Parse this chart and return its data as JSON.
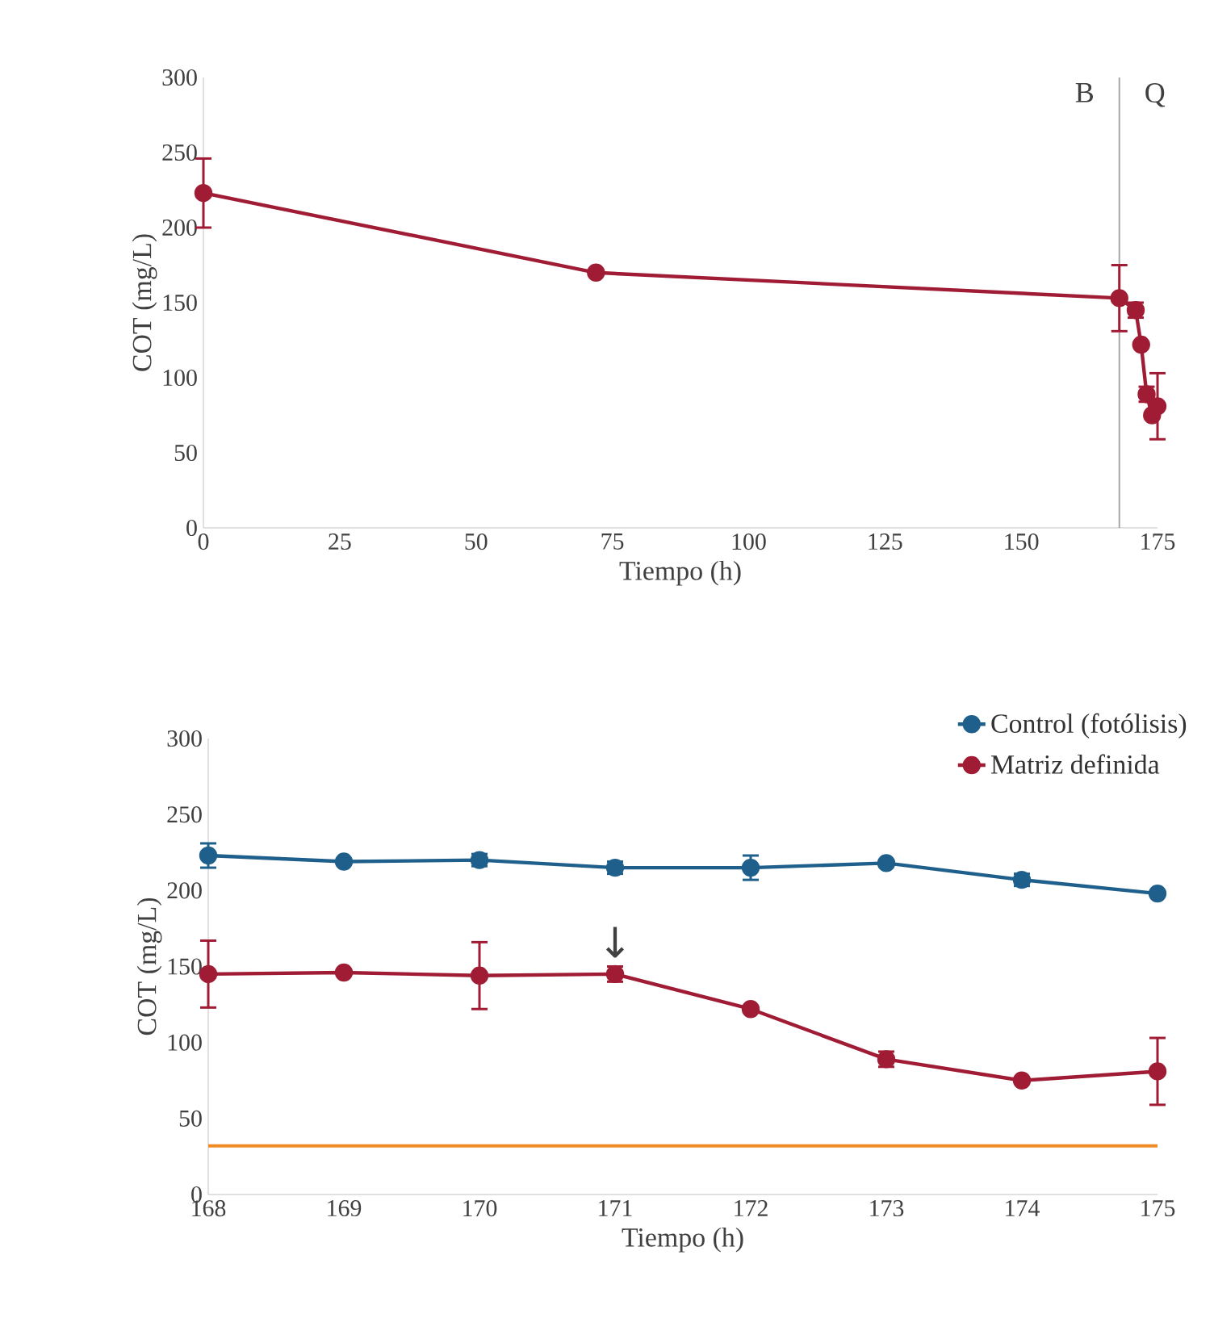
{
  "chart_data": [
    {
      "type": "line",
      "xlabel": "Tiempo (h)",
      "ylabel": "COT (mg/L)",
      "marker": "circle",
      "x": [
        0,
        72,
        168,
        169,
        170,
        171,
        172,
        173,
        174,
        175
      ],
      "series": [
        {
          "color": "#a01c34",
          "values": [
            223,
            170,
            153,
            null,
            null,
            145,
            122,
            89,
            75,
            81
          ],
          "errors": [
            23,
            null,
            22,
            null,
            null,
            5,
            null,
            5,
            null,
            22
          ]
        }
      ],
      "xlim": [
        0,
        175
      ],
      "ylim": [
        0,
        300
      ],
      "xticks": [
        0,
        25,
        50,
        75,
        100,
        125,
        150,
        175
      ],
      "yticks": [
        0,
        50,
        100,
        150,
        200,
        250,
        300
      ],
      "ref_lines": [
        {
          "axis": "x",
          "value": 168,
          "color": "#a6a6a6"
        }
      ],
      "annotations": [
        "B",
        "Q"
      ]
    },
    {
      "type": "line",
      "xlabel": "Tiempo (h)",
      "ylabel": "COT (mg/L)",
      "marker": "circle",
      "legend": "top right",
      "x": [
        168,
        169,
        170,
        171,
        172,
        173,
        174,
        175
      ],
      "series": [
        {
          "name": "Control (fotólisis)",
          "color": "#1f5f8b",
          "values": [
            223,
            219,
            220,
            215,
            215,
            218,
            207,
            198
          ],
          "errors": [
            8,
            null,
            4,
            4,
            8,
            null,
            4,
            null
          ]
        },
        {
          "name": "Matriz definida",
          "color": "#a01c34",
          "values": [
            145,
            146,
            144,
            145,
            122,
            89,
            75,
            81
          ],
          "errors": [
            22,
            null,
            22,
            5,
            null,
            5,
            null,
            22
          ]
        }
      ],
      "xlim": [
        168,
        175
      ],
      "ylim": [
        0,
        300
      ],
      "xticks": [
        168,
        169,
        170,
        171,
        172,
        173,
        174,
        175
      ],
      "yticks": [
        0,
        50,
        100,
        150,
        200,
        250,
        300
      ],
      "ref_lines": [
        {
          "axis": "y",
          "value": 32,
          "color": "#f08a24"
        }
      ],
      "annotations": [
        {
          "text": "↓",
          "x": 171,
          "y": 145
        }
      ]
    }
  ]
}
